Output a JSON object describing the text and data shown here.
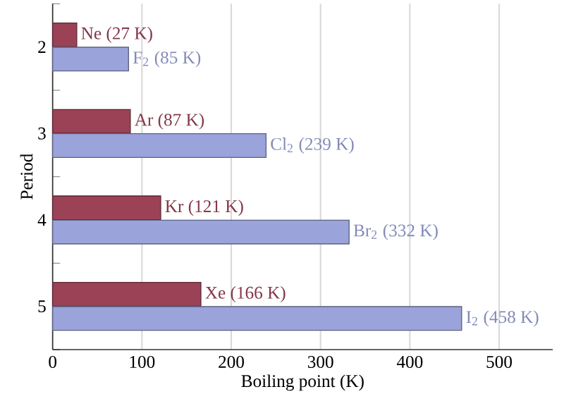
{
  "chart_data": {
    "type": "bar",
    "orientation": "horizontal",
    "xlabel": "Boiling point (K)",
    "ylabel": "Period",
    "categories": [
      "2",
      "3",
      "4",
      "5"
    ],
    "series": [
      {
        "color": "#9b4257",
        "values": [
          27,
          87,
          121,
          166
        ],
        "value_labels": [
          "Ne (27 K)",
          "Ar (87 K)",
          "Kr (121 K)",
          "Xe (166 K)"
        ]
      },
      {
        "color": "#9aa3da",
        "values": [
          85,
          239,
          332,
          458
        ],
        "value_labels": [
          "F$_{2}$ (85 K)",
          "Cl$_{2}$ (239 K)",
          "Br$_{2}$ (332 K)",
          "I$_{2}$ (458 K)"
        ]
      }
    ],
    "xlim": [
      0,
      560
    ],
    "xticks": [
      0,
      100,
      200,
      300,
      400,
      500
    ],
    "grid": "x"
  }
}
